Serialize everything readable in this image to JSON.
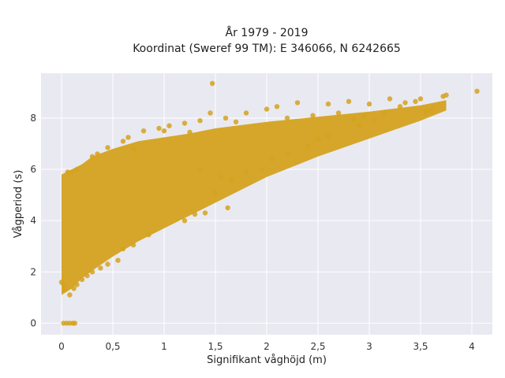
{
  "chart_data": {
    "type": "scatter",
    "title_line1": "År 1979 - 2019",
    "title_line2": "Koordinat (Sweref 99 TM): E 346066, N 6242665",
    "xlabel": "Signifikant våghöjd (m)",
    "ylabel": "Vågperiod (s)",
    "xlim": [
      -0.2,
      4.2
    ],
    "ylim": [
      -0.45,
      9.75
    ],
    "x_ticks": [
      0,
      0.5,
      1,
      1.5,
      2,
      2.5,
      3,
      3.5,
      4
    ],
    "x_tick_labels": [
      "0",
      "0,5",
      "1",
      "1,5",
      "2",
      "2,5",
      "3",
      "3,5",
      "4"
    ],
    "y_ticks": [
      0,
      2,
      4,
      6,
      8
    ],
    "y_tick_labels": [
      "0",
      "2",
      "4",
      "6",
      "8"
    ],
    "grid": true,
    "colors": {
      "points": "#d4a21f",
      "plot_bg": "#e9e9f1",
      "grid": "#ffffff"
    },
    "trend": {
      "x": [
        0.0,
        0.1,
        0.2,
        0.3,
        0.5,
        0.75,
        1.0,
        1.25,
        1.5,
        2.0,
        2.5,
        3.0,
        3.5,
        3.75
      ],
      "y_low": [
        1.1,
        1.35,
        1.75,
        2.05,
        2.6,
        3.2,
        3.7,
        4.2,
        4.7,
        5.7,
        6.5,
        7.2,
        7.9,
        8.3
      ],
      "y_high": [
        5.8,
        6.0,
        6.2,
        6.5,
        6.8,
        7.1,
        7.25,
        7.4,
        7.6,
        7.85,
        8.05,
        8.25,
        8.5,
        8.7
      ]
    },
    "series": [
      {
        "points": [
          [
            0.02,
            0.0
          ],
          [
            0.05,
            0.0
          ],
          [
            0.08,
            0.0
          ],
          [
            0.11,
            0.0
          ],
          [
            0.13,
            0.0
          ],
          [
            0.02,
            1.5
          ],
          [
            0.03,
            1.3
          ],
          [
            0.0,
            1.6
          ],
          [
            0.08,
            1.1
          ],
          [
            0.06,
            5.9
          ],
          [
            0.1,
            5.9
          ],
          [
            0.15,
            6.0
          ],
          [
            0.3,
            6.5
          ],
          [
            0.45,
            6.85
          ],
          [
            0.65,
            7.25
          ],
          [
            0.8,
            7.5
          ],
          [
            0.95,
            7.6
          ],
          [
            1.05,
            7.7
          ],
          [
            1.2,
            7.8
          ],
          [
            1.35,
            7.9
          ],
          [
            1.45,
            8.2
          ],
          [
            1.47,
            9.35
          ],
          [
            1.6,
            8.0
          ],
          [
            1.8,
            8.2
          ],
          [
            2.0,
            8.35
          ],
          [
            2.1,
            8.45
          ],
          [
            2.3,
            8.6
          ],
          [
            2.6,
            8.55
          ],
          [
            2.8,
            8.65
          ],
          [
            3.0,
            8.55
          ],
          [
            3.2,
            8.75
          ],
          [
            3.35,
            8.6
          ],
          [
            3.5,
            8.75
          ],
          [
            3.55,
            8.25
          ],
          [
            3.6,
            8.3
          ],
          [
            3.72,
            8.85
          ],
          [
            3.75,
            8.9
          ],
          [
            4.05,
            9.05
          ],
          [
            3.45,
            8.65
          ],
          [
            3.3,
            8.45
          ],
          [
            3.15,
            8.2
          ],
          [
            2.95,
            8.1
          ],
          [
            2.85,
            7.95
          ],
          [
            1.62,
            4.5
          ],
          [
            1.4,
            4.3
          ],
          [
            1.3,
            4.25
          ],
          [
            1.2,
            4.0
          ],
          [
            1.5,
            5.1
          ],
          [
            1.35,
            6.0
          ],
          [
            1.55,
            5.7
          ],
          [
            0.85,
            3.45
          ],
          [
            0.7,
            3.05
          ],
          [
            0.6,
            2.9
          ],
          [
            0.55,
            2.45
          ],
          [
            0.45,
            2.3
          ],
          [
            0.38,
            2.15
          ],
          [
            0.3,
            2.0
          ],
          [
            0.25,
            1.85
          ],
          [
            0.2,
            1.7
          ],
          [
            0.15,
            1.5
          ],
          [
            0.12,
            1.35
          ],
          [
            0.35,
            6.6
          ],
          [
            0.6,
            7.1
          ],
          [
            0.7,
            6.8
          ],
          [
            1.0,
            7.5
          ],
          [
            1.25,
            7.45
          ],
          [
            1.7,
            7.85
          ],
          [
            2.2,
            8.0
          ],
          [
            2.45,
            8.1
          ],
          [
            2.7,
            8.2
          ],
          [
            2.9,
            7.7
          ],
          [
            2.5,
            7.2
          ],
          [
            2.2,
            6.6
          ],
          [
            1.95,
            6.0
          ],
          [
            1.8,
            5.9
          ],
          [
            1.65,
            5.6
          ],
          [
            2.05,
            6.4
          ],
          [
            2.4,
            6.9
          ],
          [
            2.6,
            7.3
          ],
          [
            3.05,
            7.9
          ]
        ]
      }
    ]
  }
}
